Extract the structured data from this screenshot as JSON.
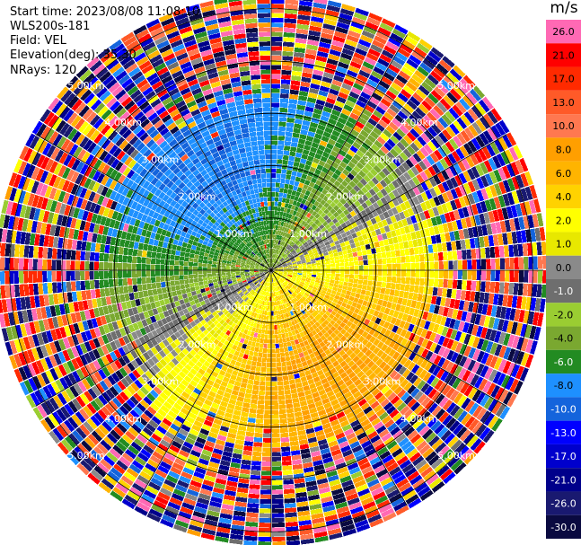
{
  "header": {
    "start_time": "Start time: 2023/08/08 11:08:10",
    "instrument": "WLS200s-181",
    "field": "Field: VEL",
    "elevation": "Elevation(deg): 35.30",
    "nrays": "NRays: 120"
  },
  "colorbar": {
    "unit": "m/s",
    "levels": [
      {
        "label": "26.0",
        "color": "#ff69b4"
      },
      {
        "label": "21.0",
        "color": "#ff0000"
      },
      {
        "label": "17.0",
        "color": "#ff2a00"
      },
      {
        "label": "13.0",
        "color": "#ff5a28"
      },
      {
        "label": "10.0",
        "color": "#ff7850"
      },
      {
        "label": "8.0",
        "color": "#ff9f00"
      },
      {
        "label": "6.0",
        "color": "#ffb400"
      },
      {
        "label": "4.0",
        "color": "#ffd200"
      },
      {
        "label": "2.0",
        "color": "#ffff00"
      },
      {
        "label": "1.0",
        "color": "#e8e800"
      },
      {
        "label": "0.0",
        "color": "#8a8a8a"
      },
      {
        "label": "-1.0",
        "color": "#6e6e6e"
      },
      {
        "label": "-2.0",
        "color": "#9acd32"
      },
      {
        "label": "-4.0",
        "color": "#7aa830"
      },
      {
        "label": "-6.0",
        "color": "#228b22"
      },
      {
        "label": "-8.0",
        "color": "#1e90ff"
      },
      {
        "label": "-10.0",
        "color": "#1464dc"
      },
      {
        "label": "-13.0",
        "color": "#0000ff"
      },
      {
        "label": "-17.0",
        "color": "#0000cd"
      },
      {
        "label": "-21.0",
        "color": "#00008b"
      },
      {
        "label": "-26.0",
        "color": "#191970"
      },
      {
        "label": "-30.0",
        "color": "#0a0a40"
      }
    ]
  },
  "chart_data": {
    "type": "heatmap",
    "projection": "polar-ppi",
    "nrays": 120,
    "range_unit": "km",
    "range_rings": [
      {
        "range_km": 1,
        "label": "1.00km"
      },
      {
        "range_km": 2,
        "label": "2.00km"
      },
      {
        "range_km": 3,
        "label": "3.00km"
      },
      {
        "range_km": 4,
        "label": "4.00km"
      },
      {
        "range_km": 5,
        "label": "5.00km"
      }
    ],
    "max_range_km": 5.2,
    "spokes_deg": [
      0,
      30,
      60,
      90,
      120,
      150,
      180,
      210,
      240,
      270,
      300,
      330
    ],
    "velocity_pattern": {
      "approaching_direction_deg": 330,
      "receding_direction_deg": 150,
      "max_valid_velocity_ms": 8,
      "noise_onset_km": 3.3,
      "note": "negative (green/blue) in the north-west half, positive (yellow/orange) in the south-east half; random noise beyond ~3.3 km"
    }
  }
}
